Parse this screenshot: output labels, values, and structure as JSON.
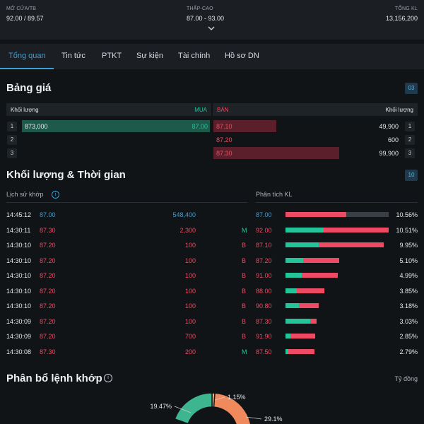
{
  "header": {
    "open_avg_label": "MỞ CỬA/TB",
    "open_avg_value": "92.00 / 89.57",
    "low_high_label": "THẤP-CAO",
    "low_high_value": "87.00 - 93.00",
    "volume_label": "TỔNG KL",
    "volume_value": "13,156,200"
  },
  "tabs": [
    "Tổng quan",
    "Tin tức",
    "PTKT",
    "Sự kiện",
    "Tài chính",
    "Hồ sơ DN"
  ],
  "orderbook": {
    "title": "Bảng giá",
    "badge": "03",
    "col_buy_vol": "Khối lượng",
    "col_buy": "MUA",
    "col_sell": "BÁN",
    "col_sell_vol": "Khối lượng",
    "rows": [
      {
        "idx": "1",
        "buy_vol": "873,000",
        "buy_price": "87.00",
        "sell_price": "87.10",
        "sell_vol": "49,900",
        "idx_r": "1",
        "buy_frac": 1.0,
        "sell_frac": 0.3
      },
      {
        "idx": "2",
        "buy_vol": "",
        "buy_price": "",
        "sell_price": "87.20",
        "sell_vol": "600",
        "idx_r": "2",
        "buy_frac": 0,
        "sell_frac": 0
      },
      {
        "idx": "3",
        "buy_vol": "",
        "buy_price": "",
        "sell_price": "87.30",
        "sell_vol": "99,900",
        "idx_r": "3",
        "buy_frac": 0,
        "sell_frac": 0.6
      }
    ]
  },
  "volume_time": {
    "title": "Khối lượng & Thời gian",
    "badge": "10",
    "history_label": "Lịch sử khớp",
    "analysis_label": "Phân tích KL",
    "history": [
      {
        "time": "14:45:12",
        "price": "87.00",
        "vol": "548,400",
        "side": "",
        "color": "blue"
      },
      {
        "time": "14:30:11",
        "price": "87.30",
        "vol": "2,300",
        "side": "M",
        "color": "red"
      },
      {
        "time": "14:30:10",
        "price": "87.20",
        "vol": "100",
        "side": "B",
        "color": "red"
      },
      {
        "time": "14:30:10",
        "price": "87.20",
        "vol": "100",
        "side": "B",
        "color": "red"
      },
      {
        "time": "14:30:10",
        "price": "87.20",
        "vol": "100",
        "side": "B",
        "color": "red"
      },
      {
        "time": "14:30:10",
        "price": "87.20",
        "vol": "100",
        "side": "B",
        "color": "red"
      },
      {
        "time": "14:30:10",
        "price": "87.20",
        "vol": "100",
        "side": "B",
        "color": "red"
      },
      {
        "time": "14:30:09",
        "price": "87.20",
        "vol": "100",
        "side": "B",
        "color": "red"
      },
      {
        "time": "14:30:09",
        "price": "87.20",
        "vol": "700",
        "side": "B",
        "color": "red"
      },
      {
        "time": "14:30:08",
        "price": "87.30",
        "vol": "200",
        "side": "M",
        "color": "red"
      }
    ],
    "analysis": [
      {
        "price": "87.00",
        "pct": "10.56%",
        "color": "blue",
        "green": 0.0,
        "red": 0.59,
        "gray": 0.41
      },
      {
        "price": "92.00",
        "pct": "10.51%",
        "color": "red",
        "green": 0.37,
        "red": 0.63,
        "gray": 0
      },
      {
        "price": "87.10",
        "pct": "9.95%",
        "color": "red",
        "green": 0.32,
        "red": 0.63,
        "gray": 0
      },
      {
        "price": "87.20",
        "pct": "5.10%",
        "color": "red",
        "green": 0.17,
        "red": 0.35,
        "gray": 0
      },
      {
        "price": "91.00",
        "pct": "4.99%",
        "color": "red",
        "green": 0.16,
        "red": 0.35,
        "gray": 0
      },
      {
        "price": "88.00",
        "pct": "3.85%",
        "color": "red",
        "green": 0.11,
        "red": 0.27,
        "gray": 0
      },
      {
        "price": "90.80",
        "pct": "3.18%",
        "color": "red",
        "green": 0.13,
        "red": 0.19,
        "gray": 0
      },
      {
        "price": "87.30",
        "pct": "3.03%",
        "color": "red",
        "green": 0.24,
        "red": 0.06,
        "gray": 0
      },
      {
        "price": "91.90",
        "pct": "2.85%",
        "color": "red",
        "green": 0.05,
        "red": 0.24,
        "gray": 0
      },
      {
        "price": "87.50",
        "pct": "2.79%",
        "color": "red",
        "green": 0.03,
        "red": 0.25,
        "gray": 0
      }
    ]
  },
  "distribution": {
    "title": "Phân bổ lệnh khớp",
    "ratio_label": "Tỷ đồng",
    "slices": [
      {
        "label": "19.47%",
        "value": 19.47,
        "color": "#3db58e"
      },
      {
        "label": "1.15%",
        "value": 1.15,
        "color": "#f0b27a"
      },
      {
        "label": "29.1%",
        "value": 29.1,
        "color": "#f08a5d"
      }
    ]
  },
  "colors": {
    "accent": "#3aa0d8",
    "buy": "#25c39a",
    "sell": "#ef4a63"
  }
}
